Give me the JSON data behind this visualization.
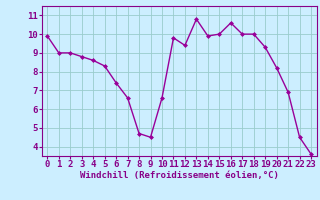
{
  "x": [
    0,
    1,
    2,
    3,
    4,
    5,
    6,
    7,
    8,
    9,
    10,
    11,
    12,
    13,
    14,
    15,
    16,
    17,
    18,
    19,
    20,
    21,
    22,
    23
  ],
  "y": [
    9.9,
    9.0,
    9.0,
    8.8,
    8.6,
    8.3,
    7.4,
    6.6,
    4.7,
    4.5,
    6.6,
    9.8,
    9.4,
    10.8,
    9.9,
    10.0,
    10.6,
    10.0,
    10.0,
    9.3,
    8.2,
    6.9,
    4.5,
    3.6
  ],
  "line_color": "#990099",
  "marker": "D",
  "marker_size": 2.0,
  "linewidth": 1.0,
  "bg_color": "#cceeff",
  "grid_color": "#99cccc",
  "xlabel": "Windchill (Refroidissement éolien,°C)",
  "xlim": [
    -0.5,
    23.5
  ],
  "ylim": [
    3.5,
    11.5
  ],
  "yticks": [
    4,
    5,
    6,
    7,
    8,
    9,
    10,
    11
  ],
  "xticks": [
    0,
    1,
    2,
    3,
    4,
    5,
    6,
    7,
    8,
    9,
    10,
    11,
    12,
    13,
    14,
    15,
    16,
    17,
    18,
    19,
    20,
    21,
    22,
    23
  ],
  "xlabel_fontsize": 6.5,
  "tick_fontsize": 6.5,
  "text_color": "#880088",
  "spine_color": "#880088"
}
